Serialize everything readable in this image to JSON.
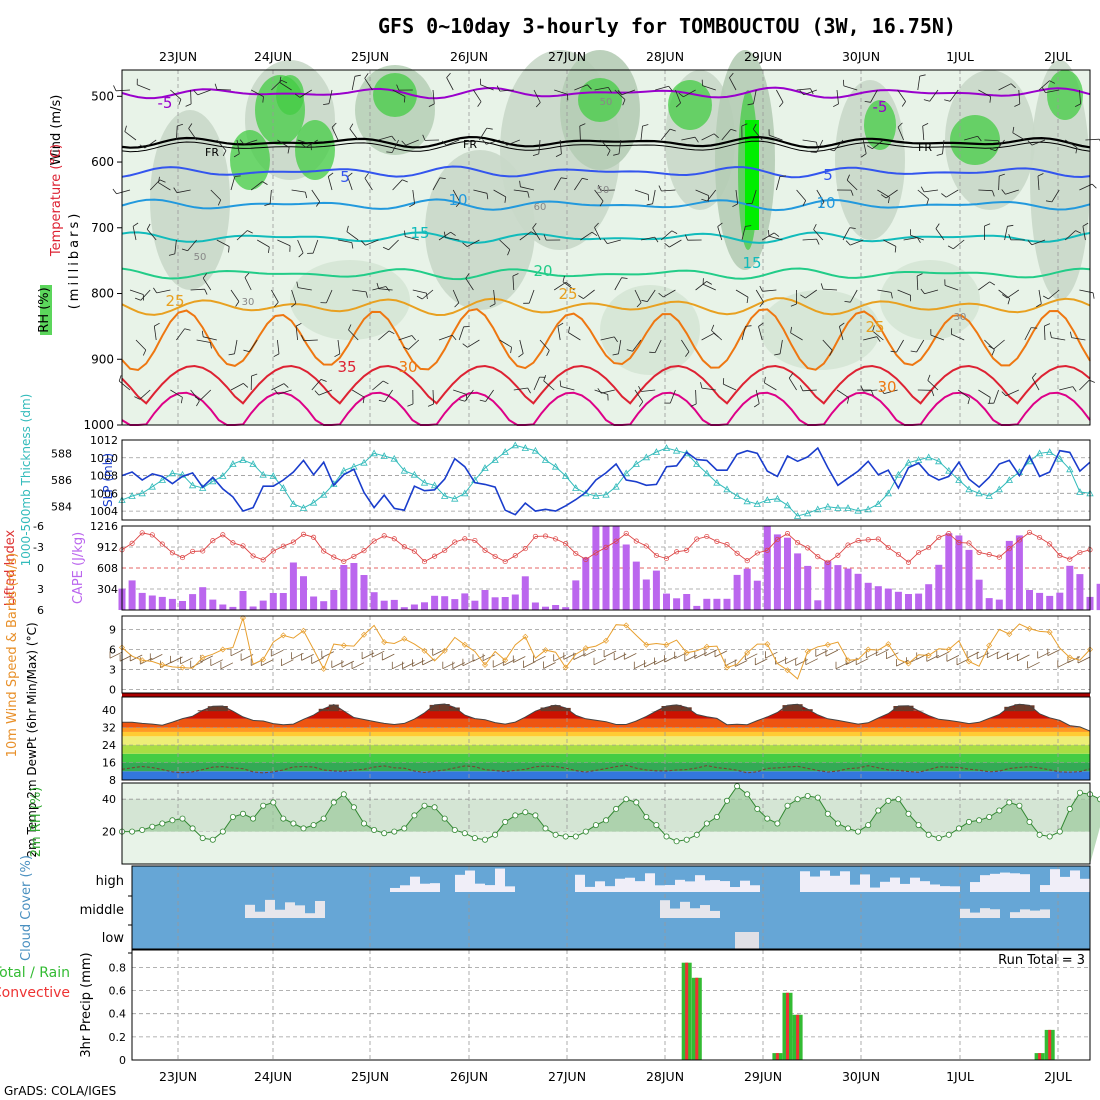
{
  "chart_data": {
    "type": "meteogram",
    "title": "GFS 0~10day 3-hourly for TOMBOUCTOU (3W, 16.75N)",
    "credit": "GrADS: COLA/IGES",
    "dates": [
      "23JUN",
      "24JUN",
      "25JUN",
      "26JUN",
      "27JUN",
      "28JUN",
      "29JUN",
      "30JUN",
      "1JUL",
      "2JUL"
    ],
    "colors": {
      "grid": "#999999",
      "rh_green": "#33cc33",
      "temp_red": "#cc0000",
      "sky_blue": "#66a6d6"
    },
    "upper_panel": {
      "ylabel_wind": "Wind (m/s)",
      "ylabel_temp": "Temperature (°C)",
      "ylabel_rh": "RH (%)",
      "ylabel_pressure": "(millibars)",
      "pressure_levels": [
        "500",
        "600",
        "700",
        "800",
        "900",
        "1000"
      ],
      "contour_labels": [
        "-5",
        "FR",
        "FR",
        "FR",
        "-5",
        "5",
        "5",
        "10",
        "10",
        "15",
        "15",
        "20",
        "25",
        "25",
        "25",
        "30",
        "30",
        "35",
        "50",
        "60",
        "30",
        "30",
        "50",
        "50"
      ],
      "temperature_contours_C": [
        {
          "value": -5,
          "mb": 495,
          "color": "#9900cc"
        },
        {
          "value": 0,
          "mb": 570,
          "color": "#000000"
        },
        {
          "value": 5,
          "mb": 615,
          "color": "#3355ee"
        },
        {
          "value": 10,
          "mb": 665,
          "color": "#2299dd"
        },
        {
          "value": 15,
          "mb": 715,
          "color": "#11bbbb"
        },
        {
          "value": 20,
          "mb": 770,
          "color": "#22cc88"
        },
        {
          "value": 25,
          "mb": 820,
          "color": "#e8a020"
        },
        {
          "value": 30,
          "mb": 870,
          "color": "#ee7711"
        },
        {
          "value": 35,
          "mb": 930,
          "color": "#dd2233"
        },
        {
          "value": 40,
          "mb": 975,
          "color": "#dd0088"
        }
      ]
    },
    "slp_thickness": {
      "ylabel_left": "1000-500mb Thickness (dm)",
      "ylabel_right": "SLP (mb)",
      "thickness_ticks": [
        "584",
        "586",
        "588"
      ],
      "slp_ticks": [
        "1004",
        "1006",
        "1008",
        "1010",
        "1012"
      ],
      "slp_mb": [
        1008,
        1008.4,
        1007.5,
        1008.2,
        1007.9,
        1007.1,
        1007.9,
        1008.3,
        1006.7,
        1007.8,
        1006.5,
        1005.6,
        1004,
        1004.4,
        1006.8,
        1006.8,
        1007.5,
        1008.4,
        1009.7,
        1008.1,
        1009.5,
        1006.9,
        1008.1,
        1008.7,
        1006.1,
        1004.4,
        1005.8,
        1004.3,
        1004.1,
        1006.8,
        1006.3,
        1006.4,
        1007.6,
        1009.9,
        1009,
        1007.2,
        1007,
        1006.7,
        1004.1,
        1003.6,
        1004.9,
        1004,
        1004.2,
        1004,
        1004.6,
        1005.3,
        1006.1,
        1007.5,
        1008.3,
        1009.3,
        1007.5,
        1007.3,
        1006.9,
        1007,
        1009,
        1009.1,
        1010.6,
        1009.8,
        1009.7,
        1008.6,
        1008.6,
        1010.4,
        1010.8,
        1010.5,
        1008.5,
        1007.9,
        1010.2,
        1009.6,
        1010.1,
        1011.1,
        1008.9,
        1006.9,
        1007.7,
        1008.5,
        1009.6,
        1008.1,
        1008.6,
        1006.6,
        1008.9,
        1009.4,
        1008.1,
        1007.5,
        1007.9,
        1009.5,
        1007.6,
        1006.7,
        1007.8,
        1009.3,
        1009.7,
        1008,
        1010.2,
        1007.9,
        1008.4,
        1010.8,
        1010.6,
        1008.5,
        1009.5
      ],
      "thickness_dm": [
        584.5,
        584.8,
        585,
        585.5,
        586,
        586.5,
        586.4,
        585.6,
        585.4,
        585.9,
        586.3,
        587.2,
        587.5,
        587.2,
        586.4,
        586.3,
        585.4,
        584.2,
        583.9,
        584.3,
        584.9,
        585.7,
        586.7,
        587,
        587.3,
        588,
        587.8,
        587.6,
        586.7,
        586.4,
        585.8,
        585.6,
        584.8,
        584.6,
        585,
        586,
        586.9,
        587.5,
        588.1,
        588.6,
        588.4,
        588.2,
        587.5,
        587,
        586.3,
        585.4,
        585,
        584.8,
        584.9,
        585.5,
        586.5,
        587.2,
        587.7,
        588.1,
        588.4,
        588.2,
        588,
        587.2,
        586.5,
        585.8,
        585.3,
        584.8,
        584.4,
        584.2,
        584.5,
        584.6,
        584.1,
        583.3,
        583.5,
        583.8,
        584,
        583.9,
        583.9,
        583.7,
        583.8,
        584.2,
        585,
        586.4,
        587.3,
        587.5,
        587.7,
        587.4,
        586.7,
        586,
        585.3,
        585,
        584.8,
        585.3,
        586,
        586.6,
        587.4,
        588,
        588.1,
        587.6,
        586.8,
        585.1,
        585
      ]
    },
    "li_cape": {
      "ylabel_left": "Lifted Index",
      "ylabel_right": "CAPE (J/kg)",
      "li_ticks": [
        "-6",
        "-3",
        "0",
        "3",
        "6"
      ],
      "cape_ticks": [
        "304",
        "608",
        "912",
        "1216"
      ],
      "cape_jkg": [
        310,
        428,
        248,
        210,
        190,
        160,
        130,
        230,
        330,
        150,
        80,
        45,
        275,
        50,
        136,
        246,
        246,
        688,
        490,
        196,
        128,
        290,
        652,
        680,
        506,
        258,
        134,
        146,
        40,
        80,
        112,
        206,
        200,
        158,
        240,
        134,
        290,
        184,
        188,
        224,
        488,
        108,
        48,
        72,
        40,
        428,
        760,
        1276,
        1270,
        1238,
        948,
        700,
        442,
        570,
        238,
        170,
        232,
        60,
        162,
        162,
        162,
        508,
        598,
        424,
        1212,
        1094,
        1046,
        820,
        638,
        140,
        708,
        650,
        600,
        524,
        394,
        344,
        310,
        264,
        232,
        238,
        374,
        654,
        1110,
        1078,
        870,
        438,
        172,
        150,
        1000,
        1080,
        290,
        248,
        204,
        250,
        640,
        520,
        190,
        380,
        90
      ]
    },
    "wind10m": {
      "ylabel": "10m Wind Speed & Barbs (m/s)",
      "ticks": [
        "0",
        "3",
        "6",
        "9"
      ],
      "speed_ms": [
        6.3,
        5,
        4.4,
        4.2,
        3.7,
        3.4,
        3.3,
        3.2,
        4.8,
        5.3,
        6,
        6.3,
        10.7,
        3.8,
        4.5,
        7.1,
        8.1,
        7.7,
        8.8,
        6,
        3.1,
        6.8,
        6.6,
        6.5,
        8.2,
        9.6,
        7.1,
        6.9,
        7.6,
        6.8,
        5.8,
        4.3,
        5.8,
        7.8,
        6.7,
        5.7,
        3.7,
        5.7,
        4.4,
        6.7,
        7.9,
        4.7,
        5.9,
        5.6,
        3.3,
        5.3,
        6.2,
        6.5,
        7.3,
        9.7,
        9.6,
        8.1,
        6.7,
        6.9,
        6.7,
        7.4,
        5.5,
        5.8,
        6.4,
        6.5,
        3.3,
        3.8,
        5.5,
        6.8,
        6.8,
        3.9,
        2.9,
        1.6,
        5.7,
        6.4,
        6.7,
        7.1,
        4.4,
        4.5,
        6,
        5.9,
        6.8,
        4.5,
        3.9,
        5.2,
        5.1,
        6.1,
        6,
        7.3,
        4.2,
        3.5,
        6.6,
        9,
        8.3,
        9.8,
        9.1,
        8.7,
        8.6,
        6.2,
        4.8,
        4.4,
        6
      ]
    },
    "temp2m": {
      "ylabel": "2m Temp 2m DewPt (6hr Min/Max) (°C)",
      "ticks": [
        "8",
        "16",
        "24",
        "32",
        "40"
      ],
      "temp_C": [
        34.4,
        34.4,
        33.9,
        33.6,
        33.1,
        34.5,
        36.1,
        37.2,
        39.9,
        41.8,
        41.9,
        39.5,
        36.9,
        35.3,
        35,
        33.8,
        33.3,
        33.6,
        35.8,
        37.7,
        40.6,
        42.5,
        39.6,
        36.6,
        35.7,
        34.8,
        33.9,
        33.4,
        33.9,
        35.9,
        38.7,
        42.4,
        42.8,
        41.2,
        37.7,
        36.1,
        35.6,
        34.3,
        33.6,
        34.5,
        36.8,
        39.5,
        41.2,
        42.3,
        41,
        37.6,
        36,
        35.4,
        34.7,
        33.4,
        33.4,
        35,
        37.1,
        39.6,
        41.9,
        42.4,
        41.3,
        38,
        37,
        36.2,
        33.3,
        33.5,
        33.3,
        35.2,
        36.9,
        38.9,
        42.3,
        42.7,
        40.4,
        37.8,
        36,
        35.3,
        34.4,
        33.6,
        34.2,
        36.4,
        38.4,
        41.9,
        42,
        39.7,
        37.5,
        35.8,
        35.3,
        34.6,
        33.8,
        34.4,
        36.2,
        38,
        41.5,
        42.7,
        42.2,
        38.3,
        36.5,
        35.3,
        32.9,
        32.3,
        30.4
      ]
    },
    "rh2m": {
      "ylabel": "2m RH (%)",
      "ticks": [
        "20",
        "40"
      ],
      "rh_pct": [
        20,
        20,
        21,
        23,
        25,
        27,
        28,
        22,
        16,
        15,
        20,
        29,
        31,
        28,
        36,
        38,
        28,
        25,
        22,
        24,
        28,
        38,
        43,
        35,
        25,
        21,
        19,
        20,
        22,
        30,
        36,
        35,
        28,
        21,
        19,
        16,
        15,
        18,
        26,
        30,
        32,
        30,
        22,
        18,
        17,
        17,
        20,
        24,
        27,
        34,
        40,
        38,
        29,
        24,
        17,
        14,
        15,
        18,
        25,
        29,
        39,
        48,
        43,
        34,
        28,
        25,
        36,
        40,
        42,
        41,
        31,
        25,
        22,
        20,
        24,
        33,
        39,
        40,
        31,
        24,
        18,
        16,
        18,
        22,
        26,
        27,
        29,
        33,
        38,
        36,
        26,
        18,
        17,
        20,
        34,
        44,
        43,
        40,
        46
      ]
    },
    "cloud_cover": {
      "ylabel": "Cloud Cover (%)",
      "levels": [
        "high",
        "middle",
        "low"
      ]
    },
    "precip": {
      "ylabel": "3hr Precip (mm)",
      "legend_total": "Total / Rain",
      "legend_convective": "Convective",
      "run_total_label": "Run Total = 3",
      "ticks": [
        "0",
        "0.2",
        "0.4",
        "0.6",
        "0.8"
      ],
      "bars": [
        {
          "index": 56,
          "total": 0.84,
          "convective": 0.84
        },
        {
          "index": 57,
          "total": 0.71,
          "convective": 0.71
        },
        {
          "index": 65,
          "total": 0.06,
          "convective": 0.06
        },
        {
          "index": 66,
          "total": 0.58,
          "convective": 0.58
        },
        {
          "index": 67,
          "total": 0.39,
          "convective": 0.39
        },
        {
          "index": 91,
          "total": 0.06,
          "convective": 0.06
        },
        {
          "index": 92,
          "total": 0.26,
          "convective": 0.26
        }
      ]
    }
  }
}
